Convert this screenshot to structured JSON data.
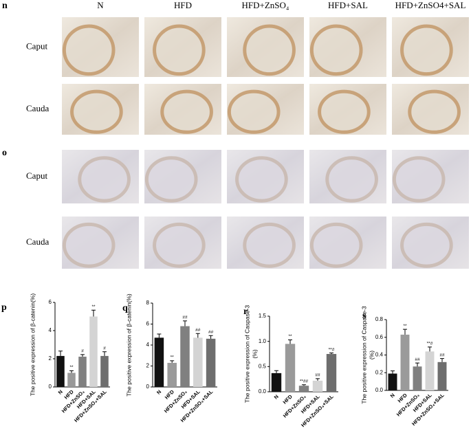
{
  "image_panels": {
    "labels": [
      "n",
      "o"
    ],
    "columns": [
      "N",
      "HFD",
      "HFD+ZnSO₄",
      "HFD+SAL",
      "HFD+ZnSO4+SAL"
    ],
    "rows": [
      "Caput",
      "Cauda"
    ]
  },
  "chart_data": [
    {
      "type": "bar",
      "panel": "p",
      "y_label": [
        "The positive  expression of β-catenin(%)"
      ],
      "categories": [
        "N",
        "HFD",
        "HFD+ZnSO₄",
        "HFD+SAL",
        "HFD+ZnSO₄+SAL"
      ],
      "values": [
        2.2,
        1.0,
        2.15,
        5.0,
        2.2
      ],
      "errors": [
        0.35,
        0.15,
        0.15,
        0.45,
        0.3
      ],
      "annotations": [
        null,
        "**",
        "#",
        "**",
        "#"
      ],
      "colors": [
        "#111111",
        "#9a9a9a",
        "#808080",
        "#d4d4d4",
        "#6e6e6e"
      ],
      "ylim": [
        0,
        6
      ],
      "yticks": [
        0,
        2,
        4,
        6
      ]
    },
    {
      "type": "bar",
      "panel": "q",
      "y_label": [
        "The positive  expression of β-catenin(%)"
      ],
      "categories": [
        "N",
        "HFD",
        "HFD+ZnSO₄",
        "HFD+SAL",
        "HFD+ZnSO₄+SAL"
      ],
      "values": [
        4.7,
        2.3,
        5.8,
        4.7,
        4.6
      ],
      "errors": [
        0.35,
        0.2,
        0.5,
        0.4,
        0.3
      ],
      "annotations": [
        null,
        "**",
        "##",
        "##",
        "##"
      ],
      "colors": [
        "#111111",
        "#9a9a9a",
        "#808080",
        "#d4d4d4",
        "#6e6e6e"
      ],
      "ylim": [
        0,
        8
      ],
      "yticks": [
        0,
        2,
        4,
        6,
        8
      ]
    },
    {
      "type": "bar",
      "panel": "r",
      "y_label": [
        "The positive  expression of Caspase-3",
        "(%)"
      ],
      "categories": [
        "N",
        "HFD",
        "HFD+ZnSO₄",
        "HFD+SAL",
        "HFD+ZnSO₄+SAL"
      ],
      "values": [
        0.37,
        0.95,
        0.12,
        0.22,
        0.75
      ],
      "errors": [
        0.05,
        0.08,
        0.02,
        0.04,
        0.02
      ],
      "annotations": [
        null,
        "**",
        "**##",
        "##",
        "**#"
      ],
      "colors": [
        "#111111",
        "#9a9a9a",
        "#808080",
        "#d4d4d4",
        "#6e6e6e"
      ],
      "ylim": [
        0,
        1.5
      ],
      "yticks": [
        {
          "value": 0,
          "label": "0.0"
        },
        {
          "value": 0.5,
          "label": "0.5"
        },
        {
          "value": 1,
          "label": "1.0"
        },
        {
          "value": 1.5,
          "label": "1.5"
        }
      ]
    },
    {
      "type": "bar",
      "panel": "s",
      "y_label": [
        "The positive  expression of Caspase-3",
        "(%)"
      ],
      "categories": [
        "N",
        "HFD",
        "HFD+ZnSO₄",
        "HFD+SAL",
        "HFD+ZnSO₄+SAL"
      ],
      "values": [
        0.19,
        0.63,
        0.27,
        0.44,
        0.32
      ],
      "errors": [
        0.03,
        0.06,
        0.04,
        0.05,
        0.04
      ],
      "annotations": [
        null,
        "**",
        "##",
        "**#",
        "##"
      ],
      "colors": [
        "#111111",
        "#9a9a9a",
        "#808080",
        "#d4d4d4",
        "#6e6e6e"
      ],
      "ylim": [
        0,
        0.8
      ],
      "yticks": [
        {
          "value": 0,
          "label": "0.0"
        },
        {
          "value": 0.2,
          "label": "0.2"
        },
        {
          "value": 0.4,
          "label": "0.4"
        },
        {
          "value": 0.6,
          "label": "0.6"
        },
        {
          "value": 0.8,
          "label": "0.8"
        }
      ]
    }
  ]
}
